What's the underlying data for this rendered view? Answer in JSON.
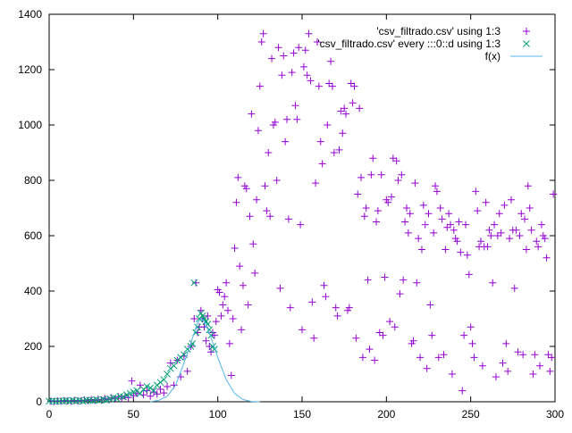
{
  "chart_data": {
    "type": "scatter",
    "title": "",
    "xlabel": "",
    "ylabel": "",
    "xlim": [
      0,
      300
    ],
    "ylim": [
      0,
      1400
    ],
    "xticks": [
      0,
      50,
      100,
      150,
      200,
      250,
      300
    ],
    "yticks": [
      0,
      200,
      400,
      600,
      800,
      1000,
      1200,
      1400
    ],
    "grid": false,
    "legend_position": "top-right",
    "series": [
      {
        "name": "'csv_filtrado.csv' using 1:3",
        "marker": "plus",
        "color": "#9400d3",
        "points": [
          [
            1,
            2
          ],
          [
            3,
            1
          ],
          [
            5,
            3
          ],
          [
            7,
            2
          ],
          [
            9,
            4
          ],
          [
            11,
            3
          ],
          [
            13,
            2
          ],
          [
            15,
            5
          ],
          [
            17,
            3
          ],
          [
            19,
            4
          ],
          [
            21,
            6
          ],
          [
            23,
            4
          ],
          [
            25,
            8
          ],
          [
            27,
            5
          ],
          [
            29,
            9
          ],
          [
            31,
            6
          ],
          [
            33,
            12
          ],
          [
            35,
            8
          ],
          [
            37,
            14
          ],
          [
            39,
            10
          ],
          [
            41,
            18
          ],
          [
            43,
            12
          ],
          [
            45,
            20
          ],
          [
            47,
            15
          ],
          [
            49,
            75
          ],
          [
            50,
            22
          ],
          [
            52,
            30
          ],
          [
            54,
            60
          ],
          [
            56,
            25
          ],
          [
            58,
            40
          ],
          [
            60,
            20
          ],
          [
            62,
            35
          ],
          [
            64,
            28
          ],
          [
            66,
            45
          ],
          [
            68,
            32
          ],
          [
            70,
            55
          ],
          [
            72,
            140
          ],
          [
            74,
            60
          ],
          [
            76,
            150
          ],
          [
            78,
            90
          ],
          [
            80,
            165
          ],
          [
            82,
            110
          ],
          [
            84,
            200
          ],
          [
            86,
            300
          ],
          [
            87,
            430
          ],
          [
            88,
            250
          ],
          [
            89,
            270
          ],
          [
            90,
            330
          ],
          [
            91,
            300
          ],
          [
            92,
            270
          ],
          [
            93,
            220
          ],
          [
            94,
            310
          ],
          [
            95,
            200
          ],
          [
            96,
            180
          ],
          [
            97,
            250
          ],
          [
            98,
            240
          ],
          [
            99,
            290
          ],
          [
            100,
            405
          ],
          [
            101,
            395
          ],
          [
            102,
            310
          ],
          [
            103,
            350
          ],
          [
            104,
            380
          ],
          [
            105,
            430
          ],
          [
            106,
            330
          ],
          [
            107,
            210
          ],
          [
            108,
            95
          ],
          [
            109,
            300
          ],
          [
            110,
            555
          ],
          [
            111,
            720
          ],
          [
            112,
            810
          ],
          [
            113,
            490
          ],
          [
            114,
            260
          ],
          [
            115,
            420
          ],
          [
            116,
            780
          ],
          [
            117,
            770
          ],
          [
            118,
            350
          ],
          [
            119,
            670
          ],
          [
            120,
            1040
          ],
          [
            121,
            570
          ],
          [
            122,
            465
          ],
          [
            123,
            730
          ],
          [
            124,
            980
          ],
          [
            125,
            1140
          ],
          [
            126,
            1300
          ],
          [
            127,
            1330
          ],
          [
            128,
            780
          ],
          [
            129,
            690
          ],
          [
            130,
            900
          ],
          [
            131,
            670
          ],
          [
            132,
            1240
          ],
          [
            133,
            1000
          ],
          [
            134,
            1010
          ],
          [
            135,
            800
          ],
          [
            136,
            1280
          ],
          [
            137,
            410
          ],
          [
            138,
            1180
          ],
          [
            139,
            1250
          ],
          [
            140,
            940
          ],
          [
            141,
            1020
          ],
          [
            142,
            660
          ],
          [
            143,
            340
          ],
          [
            144,
            1190
          ],
          [
            145,
            1260
          ],
          [
            146,
            1070
          ],
          [
            147,
            1020
          ],
          [
            148,
            1280
          ],
          [
            149,
            640
          ],
          [
            150,
            260
          ],
          [
            151,
            1210
          ],
          [
            152,
            1270
          ],
          [
            153,
            1180
          ],
          [
            154,
            1330
          ],
          [
            155,
            1160
          ],
          [
            156,
            360
          ],
          [
            157,
            230
          ],
          [
            158,
            790
          ],
          [
            159,
            1300
          ],
          [
            160,
            1140
          ],
          [
            161,
            940
          ],
          [
            162,
            860
          ],
          [
            163,
            420
          ],
          [
            164,
            380
          ],
          [
            165,
            1000
          ],
          [
            166,
            1150
          ],
          [
            167,
            1230
          ],
          [
            168,
            1140
          ],
          [
            169,
            900
          ],
          [
            170,
            340
          ],
          [
            171,
            310
          ],
          [
            172,
            910
          ],
          [
            173,
            1050
          ],
          [
            174,
            970
          ],
          [
            175,
            1060
          ],
          [
            176,
            1040
          ],
          [
            177,
            330
          ],
          [
            178,
            340
          ],
          [
            179,
            1150
          ],
          [
            180,
            1080
          ],
          [
            181,
            1140
          ],
          [
            182,
            230
          ],
          [
            183,
            750
          ],
          [
            184,
            1060
          ],
          [
            185,
            810
          ],
          [
            186,
            160
          ],
          [
            187,
            670
          ],
          [
            188,
            700
          ],
          [
            189,
            440
          ],
          [
            190,
            190
          ],
          [
            191,
            820
          ],
          [
            192,
            880
          ],
          [
            193,
            150
          ],
          [
            194,
            650
          ],
          [
            195,
            690
          ],
          [
            196,
            250
          ],
          [
            197,
            820
          ],
          [
            198,
            240
          ],
          [
            199,
            450
          ],
          [
            200,
            730
          ],
          [
            201,
            720
          ],
          [
            202,
            290
          ],
          [
            203,
            740
          ],
          [
            204,
            880
          ],
          [
            205,
            270
          ],
          [
            206,
            870
          ],
          [
            207,
            800
          ],
          [
            208,
            390
          ],
          [
            209,
            820
          ],
          [
            210,
            440
          ],
          [
            211,
            650
          ],
          [
            212,
            700
          ],
          [
            213,
            610
          ],
          [
            214,
            680
          ],
          [
            215,
            210
          ],
          [
            216,
            220
          ],
          [
            217,
            790
          ],
          [
            218,
            430
          ],
          [
            219,
            590
          ],
          [
            220,
            160
          ],
          [
            221,
            550
          ],
          [
            222,
            710
          ],
          [
            223,
            640
          ],
          [
            224,
            120
          ],
          [
            225,
            680
          ],
          [
            226,
            350
          ],
          [
            227,
            240
          ],
          [
            228,
            610
          ],
          [
            229,
            780
          ],
          [
            230,
            760
          ],
          [
            231,
            160
          ],
          [
            232,
            700
          ],
          [
            233,
            660
          ],
          [
            234,
            170
          ],
          [
            235,
            550
          ],
          [
            236,
            630
          ],
          [
            237,
            680
          ],
          [
            238,
            640
          ],
          [
            239,
            100
          ],
          [
            240,
            620
          ],
          [
            241,
            590
          ],
          [
            242,
            580
          ],
          [
            243,
            650
          ],
          [
            244,
            540
          ],
          [
            245,
            40
          ],
          [
            246,
            240
          ],
          [
            247,
            640
          ],
          [
            248,
            530
          ],
          [
            249,
            460
          ],
          [
            250,
            270
          ],
          [
            251,
            210
          ],
          [
            252,
            160
          ],
          [
            253,
            760
          ],
          [
            254,
            690
          ],
          [
            255,
            560
          ],
          [
            256,
            580
          ],
          [
            257,
            130
          ],
          [
            258,
            560
          ],
          [
            259,
            720
          ],
          [
            260,
            560
          ],
          [
            261,
            620
          ],
          [
            262,
            600
          ],
          [
            263,
            430
          ],
          [
            264,
            640
          ],
          [
            265,
            90
          ],
          [
            266,
            600
          ],
          [
            267,
            680
          ],
          [
            268,
            610
          ],
          [
            269,
            140
          ],
          [
            270,
            710
          ],
          [
            271,
            210
          ],
          [
            272,
            110
          ],
          [
            273,
            590
          ],
          [
            274,
            730
          ],
          [
            275,
            620
          ],
          [
            276,
            410
          ],
          [
            277,
            620
          ],
          [
            278,
            180
          ],
          [
            279,
            600
          ],
          [
            280,
            680
          ],
          [
            281,
            170
          ],
          [
            282,
            660
          ],
          [
            283,
            550
          ],
          [
            284,
            780
          ],
          [
            285,
            700
          ],
          [
            286,
            620
          ],
          [
            287,
            100
          ],
          [
            288,
            170
          ],
          [
            289,
            580
          ],
          [
            290,
            560
          ],
          [
            291,
            130
          ],
          [
            292,
            640
          ],
          [
            293,
            600
          ],
          [
            294,
            590
          ],
          [
            295,
            520
          ],
          [
            296,
            170
          ],
          [
            297,
            110
          ],
          [
            298,
            160
          ],
          [
            299,
            750
          ]
        ]
      },
      {
        "name": "'csv_filtrado.csv' every :::0::d using 1:3",
        "marker": "cross",
        "color": "#009e73",
        "points": [
          [
            0,
            2
          ],
          [
            2,
            3
          ],
          [
            4,
            1
          ],
          [
            6,
            2
          ],
          [
            8,
            3
          ],
          [
            10,
            4
          ],
          [
            12,
            2
          ],
          [
            14,
            5
          ],
          [
            16,
            3
          ],
          [
            18,
            4
          ],
          [
            20,
            2
          ],
          [
            22,
            6
          ],
          [
            24,
            5
          ],
          [
            26,
            4
          ],
          [
            28,
            7
          ],
          [
            30,
            5
          ],
          [
            32,
            8
          ],
          [
            34,
            6
          ],
          [
            36,
            10
          ],
          [
            38,
            14
          ],
          [
            40,
            12
          ],
          [
            42,
            20
          ],
          [
            44,
            18
          ],
          [
            46,
            25
          ],
          [
            48,
            30
          ],
          [
            50,
            35
          ],
          [
            52,
            40
          ],
          [
            54,
            30
          ],
          [
            56,
            45
          ],
          [
            58,
            55
          ],
          [
            60,
            50
          ],
          [
            62,
            40
          ],
          [
            64,
            60
          ],
          [
            66,
            70
          ],
          [
            68,
            80
          ],
          [
            70,
            100
          ],
          [
            72,
            120
          ],
          [
            74,
            130
          ],
          [
            76,
            150
          ],
          [
            78,
            160
          ],
          [
            80,
            170
          ],
          [
            82,
            190
          ],
          [
            84,
            200
          ],
          [
            85,
            210
          ],
          [
            86,
            430
          ],
          [
            87,
            250
          ],
          [
            88,
            270
          ],
          [
            89,
            300
          ],
          [
            90,
            320
          ],
          [
            91,
            310
          ],
          [
            92,
            300
          ],
          [
            93,
            290
          ],
          [
            94,
            280
          ],
          [
            95,
            260
          ],
          [
            96,
            240
          ],
          [
            97,
            200
          ],
          [
            98,
            190
          ]
        ]
      },
      {
        "name": "f(x)",
        "marker": "line",
        "color": "#56b4e9",
        "points": [
          [
            60,
            0
          ],
          [
            65,
            5
          ],
          [
            70,
            20
          ],
          [
            75,
            60
          ],
          [
            80,
            140
          ],
          [
            85,
            230
          ],
          [
            88,
            285
          ],
          [
            90,
            300
          ],
          [
            92,
            290
          ],
          [
            95,
            250
          ],
          [
            100,
            160
          ],
          [
            105,
            80
          ],
          [
            110,
            30
          ],
          [
            115,
            8
          ],
          [
            120,
            1
          ],
          [
            125,
            0
          ]
        ]
      }
    ]
  }
}
